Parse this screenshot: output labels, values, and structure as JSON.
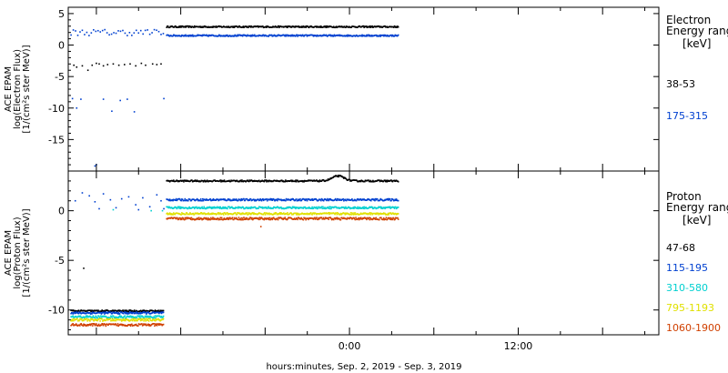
{
  "chart_data": [
    {
      "type": "scatter",
      "panel": "electron",
      "ylabel_lines": [
        "ACE EPAM",
        "log(Electron Flux)",
        "[1/(cm²s ster MeV)]"
      ],
      "ylim": [
        -20,
        6
      ],
      "yticks": [
        5,
        0,
        -5,
        -10,
        -15
      ],
      "legend_title_lines": [
        "Electron",
        "Energy ranges",
        "[keV]"
      ],
      "series": [
        {
          "name": "38-53",
          "color": "#000000",
          "sparse": [
            [
              -19.6,
              -3.2
            ],
            [
              -19.4,
              -3.5
            ],
            [
              -19.0,
              -3.3
            ],
            [
              -18.6,
              -4.0
            ],
            [
              -18.3,
              -3.2
            ],
            [
              -18.0,
              -2.9
            ],
            [
              -17.8,
              -3.0
            ],
            [
              -17.5,
              -3.3
            ],
            [
              -17.2,
              -3.1
            ],
            [
              -16.8,
              -3.0
            ],
            [
              -16.4,
              -3.2
            ],
            [
              -16.0,
              -3.1
            ],
            [
              -15.6,
              -3.0
            ],
            [
              -15.2,
              -3.3
            ],
            [
              -14.8,
              -2.9
            ],
            [
              -14.5,
              -3.2
            ],
            [
              -14.0,
              -3.0
            ],
            [
              -13.7,
              -3.1
            ],
            [
              -13.4,
              -3.0
            ]
          ],
          "solid": {
            "start": -13.0,
            "end": 3.5,
            "level": 2.9,
            "jitter": 0.12
          }
        },
        {
          "name": "175-315",
          "color": "#0040d0",
          "sparse": [
            [
              -19.7,
              -8.5
            ],
            [
              -19.4,
              -10.0
            ],
            [
              -19.1,
              -8.6
            ],
            [
              -18.1,
              -19.2
            ],
            [
              -18.0,
              -19.0
            ],
            [
              -17.5,
              -8.6
            ],
            [
              -16.9,
              -10.5
            ],
            [
              -16.3,
              -8.8
            ],
            [
              -15.8,
              -8.6
            ],
            [
              -15.3,
              -10.6
            ],
            [
              -13.2,
              -8.5
            ]
          ],
          "solid": {
            "start": -13.0,
            "end": 3.5,
            "level": 1.5,
            "jitter": 0.12
          },
          "scatter_band": {
            "start": -19.8,
            "end": -13.2,
            "level": 2.0,
            "jitter": 0.5,
            "step": 0.16
          }
        }
      ]
    },
    {
      "type": "scatter",
      "panel": "proton",
      "ylabel_lines": [
        "ACE EPAM",
        "log(Proton Flux)",
        "[1/(cm²s ster MeV)]"
      ],
      "ylim": [
        -12.5,
        4
      ],
      "yticks": [
        0,
        -5,
        -10
      ],
      "legend_title_lines": [
        "Proton",
        "Energy ranges",
        "[keV]"
      ],
      "series": [
        {
          "name": "47-68",
          "color": "#000000",
          "sparse": [
            [
              -18.9,
              -5.8
            ]
          ],
          "solid": {
            "start": -13.0,
            "end": 3.5,
            "level": 3.0,
            "jitter": 0.08
          },
          "low_band": {
            "start": -19.8,
            "end": -13.2,
            "level": -10.1,
            "jitter": 0.08
          },
          "bump": {
            "center": -0.8,
            "width": 0.6,
            "height": 0.5
          }
        },
        {
          "name": "115-195",
          "color": "#0040d0",
          "sparse": [
            [
              -19.0,
              1.8
            ],
            [
              -18.5,
              1.5
            ],
            [
              -18.1,
              0.9
            ],
            [
              -17.5,
              1.7
            ],
            [
              -17.0,
              1.1
            ],
            [
              -16.6,
              0.3
            ],
            [
              -16.2,
              1.2
            ],
            [
              -15.7,
              1.4
            ],
            [
              -15.2,
              0.6
            ],
            [
              -14.7,
              1.3
            ],
            [
              -14.2,
              0.4
            ],
            [
              -13.7,
              1.6
            ],
            [
              -13.4,
              1.0
            ],
            [
              -13.2,
              0.2
            ],
            [
              -19.5,
              1.0
            ],
            [
              -15.0,
              0.1
            ],
            [
              -17.8,
              0.2
            ]
          ],
          "solid": {
            "start": -13.0,
            "end": 3.5,
            "level": 1.1,
            "jitter": 0.1
          },
          "low_band": {
            "start": -19.8,
            "end": -13.2,
            "level": -10.3,
            "jitter": 0.1
          }
        },
        {
          "name": "310-580",
          "color": "#00d0d0",
          "sparse": [
            [
              -16.8,
              0.1
            ],
            [
              -14.1,
              0.0
            ],
            [
              -13.3,
              0.0
            ]
          ],
          "solid": {
            "start": -13.0,
            "end": 3.5,
            "level": 0.3,
            "jitter": 0.1
          },
          "low_band": {
            "start": -19.8,
            "end": -13.2,
            "level": -10.7,
            "jitter": 0.12
          }
        },
        {
          "name": "795-1193",
          "color": "#e0e000",
          "sparse": [],
          "solid": {
            "start": -13.0,
            "end": 3.5,
            "level": -0.3,
            "jitter": 0.1
          },
          "low_band": {
            "start": -19.8,
            "end": -13.2,
            "level": -11.0,
            "jitter": 0.12
          }
        },
        {
          "name": "1060-1900",
          "color": "#d04000",
          "sparse": [
            [
              -6.3,
              -1.6
            ]
          ],
          "solid": {
            "start": -13.0,
            "end": 3.5,
            "level": -0.8,
            "jitter": 0.12
          },
          "low_band": {
            "start": -19.8,
            "end": -13.2,
            "level": -11.5,
            "jitter": 0.12
          }
        }
      ]
    }
  ],
  "x_axis": {
    "xlim": [
      -20,
      22
    ],
    "ticks": [
      {
        "value": 0,
        "label": "0:00"
      },
      {
        "value": 12,
        "label": "12:00"
      }
    ],
    "label": "hours:minutes, Sep.  2, 2019 - Sep.  3, 2019"
  }
}
